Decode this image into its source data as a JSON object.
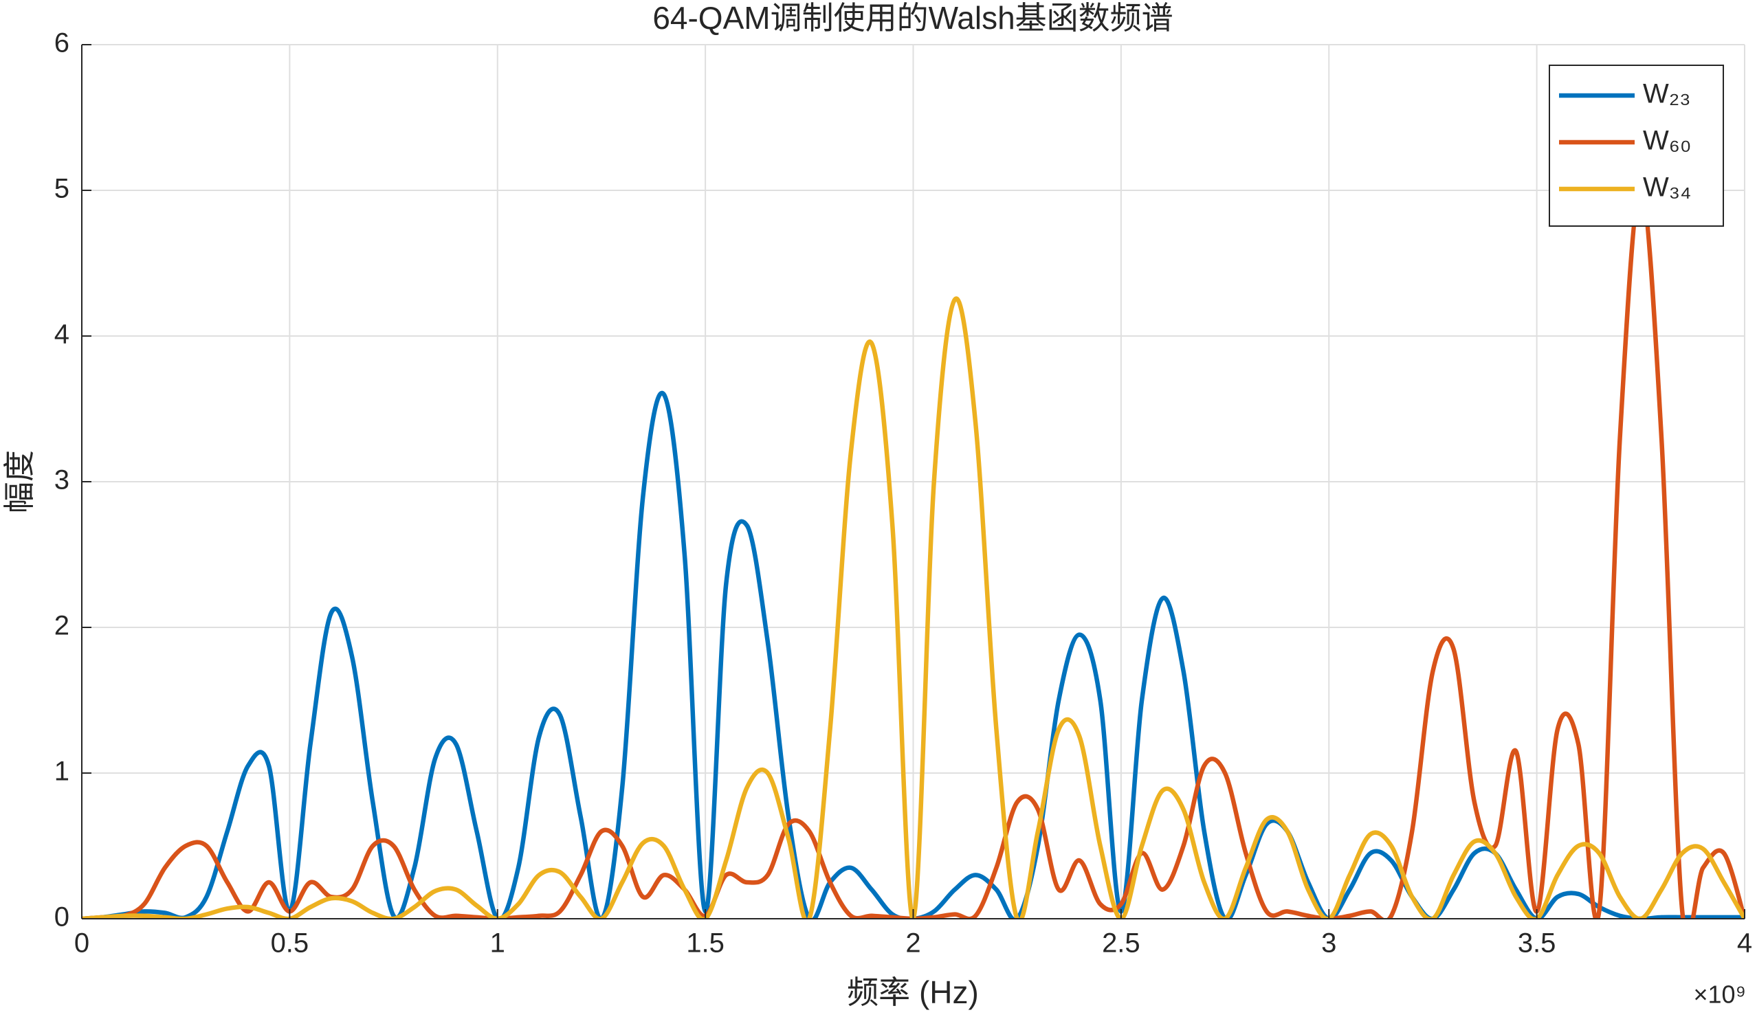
{
  "chart_data": {
    "type": "line",
    "title": "64-QAM调制使用的Walsh基函数频谱",
    "x_label": "频率 (Hz)",
    "y_label": "幅度",
    "x_exponent_label": "×10⁹",
    "grid": true,
    "legend": "northeast",
    "xlim": [
      0,
      4
    ],
    "ylim": [
      0,
      6
    ],
    "xticks": [
      0,
      0.5,
      1,
      1.5,
      2,
      2.5,
      3,
      3.5,
      4
    ],
    "yticks": [
      0,
      1,
      2,
      3,
      4,
      5,
      6
    ],
    "x": [
      0,
      0.05,
      0.1,
      0.15,
      0.2,
      0.25,
      0.3,
      0.35,
      0.4,
      0.45,
      0.5,
      0.55,
      0.6,
      0.65,
      0.7,
      0.75,
      0.8,
      0.85,
      0.9,
      0.95,
      1,
      1.05,
      1.1,
      1.15,
      1.2,
      1.25,
      1.3,
      1.35,
      1.4,
      1.45,
      1.5,
      1.55,
      1.6,
      1.65,
      1.7,
      1.75,
      1.8,
      1.85,
      1.9,
      1.95,
      2,
      2.05,
      2.1,
      2.15,
      2.2,
      2.25,
      2.3,
      2.35,
      2.4,
      2.45,
      2.5,
      2.55,
      2.6,
      2.65,
      2.7,
      2.75,
      2.8,
      2.85,
      2.9,
      2.95,
      3,
      3.05,
      3.1,
      3.15,
      3.2,
      3.25,
      3.3,
      3.35,
      3.4,
      3.45,
      3.5,
      3.55,
      3.6,
      3.65,
      3.7,
      3.75,
      3.8,
      3.85,
      3.9,
      3.95,
      4
    ],
    "series": [
      {
        "name": "W₂₃",
        "color": "#0072BD",
        "values": [
          0,
          0.01,
          0.03,
          0.05,
          0.04,
          0.01,
          0.15,
          0.6,
          1.05,
          1.05,
          0.05,
          1.2,
          2.1,
          1.8,
          0.8,
          0.02,
          0.35,
          1.1,
          1.2,
          0.6,
          0,
          0.35,
          1.25,
          1.4,
          0.7,
          0,
          0.9,
          2.9,
          3.6,
          2.5,
          0.05,
          2.3,
          2.7,
          1.9,
          0.7,
          0,
          0.25,
          0.35,
          0.2,
          0.03,
          0,
          0.05,
          0.2,
          0.3,
          0.2,
          0,
          0.5,
          1.5,
          1.95,
          1.5,
          0.05,
          1.5,
          2.2,
          1.7,
          0.6,
          0,
          0.3,
          0.65,
          0.6,
          0.25,
          0,
          0.2,
          0.45,
          0.4,
          0.15,
          0,
          0.2,
          0.45,
          0.45,
          0.2,
          0,
          0.15,
          0.17,
          0.08,
          0.02,
          0,
          0.01,
          0.01,
          0.01,
          0.01,
          0.01
        ]
      },
      {
        "name": "W₆₀",
        "color": "#D95319",
        "values": [
          0,
          0.01,
          0.02,
          0.1,
          0.35,
          0.5,
          0.5,
          0.25,
          0.05,
          0.25,
          0.05,
          0.25,
          0.15,
          0.2,
          0.5,
          0.5,
          0.2,
          0.02,
          0.02,
          0.01,
          0,
          0.01,
          0.02,
          0.05,
          0.3,
          0.6,
          0.5,
          0.15,
          0.3,
          0.2,
          0.02,
          0.3,
          0.25,
          0.3,
          0.65,
          0.6,
          0.25,
          0.02,
          0.02,
          0.01,
          0,
          0.01,
          0.03,
          0.02,
          0.35,
          0.8,
          0.75,
          0.2,
          0.4,
          0.1,
          0.1,
          0.45,
          0.2,
          0.5,
          1.05,
          1.0,
          0.45,
          0.05,
          0.05,
          0.02,
          0,
          0.02,
          0.05,
          0.02,
          0.6,
          1.7,
          1.85,
          0.8,
          0.5,
          1.15,
          0.05,
          1.3,
          1.2,
          0.05,
          3.3,
          5.0,
          3.3,
          0.05,
          0.35,
          0.45,
          0
        ]
      },
      {
        "name": "W₃₄",
        "color": "#EDB120",
        "values": [
          0,
          0.01,
          0.02,
          0.02,
          0.01,
          0,
          0.03,
          0.07,
          0.08,
          0.04,
          0,
          0.08,
          0.14,
          0.12,
          0.04,
          0,
          0.08,
          0.19,
          0.2,
          0.09,
          0,
          0.1,
          0.3,
          0.32,
          0.15,
          0,
          0.25,
          0.52,
          0.5,
          0.2,
          0,
          0.4,
          0.9,
          1.0,
          0.55,
          0,
          1.3,
          3.2,
          3.95,
          2.7,
          0,
          3.0,
          4.25,
          3.4,
          1.3,
          0,
          0.6,
          1.3,
          1.25,
          0.5,
          0,
          0.5,
          0.88,
          0.75,
          0.25,
          0,
          0.35,
          0.68,
          0.6,
          0.2,
          0,
          0.3,
          0.58,
          0.5,
          0.15,
          0,
          0.3,
          0.53,
          0.45,
          0.15,
          0,
          0.3,
          0.5,
          0.45,
          0.15,
          0,
          0.2,
          0.45,
          0.48,
          0.25,
          0
        ]
      }
    ]
  }
}
